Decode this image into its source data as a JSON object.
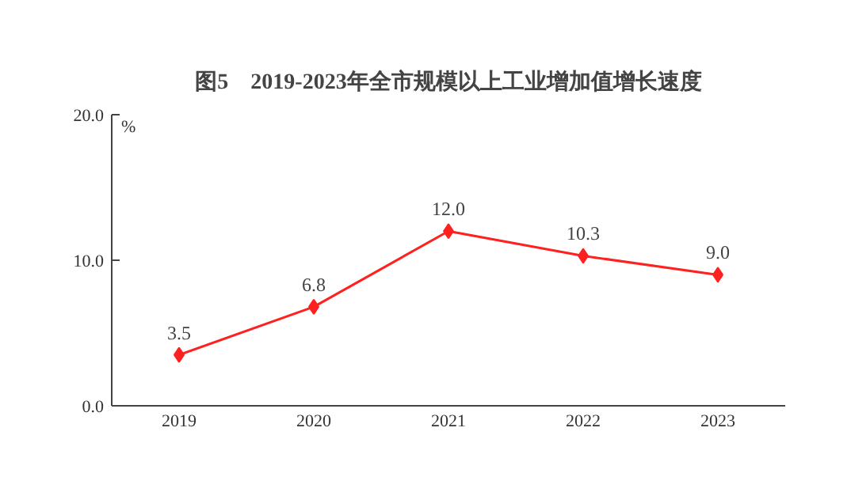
{
  "chart_data": {
    "type": "line",
    "title": "图5　2019-2023年全市规模以上工业增加值增长速度",
    "ylabel": "%",
    "categories": [
      "2019",
      "2020",
      "2021",
      "2022",
      "2023"
    ],
    "series": [
      {
        "color": "#ff2020",
        "values": [
          3.5,
          6.8,
          12.0,
          10.3,
          9.0
        ],
        "value_labels": [
          "3.5",
          "6.8",
          "12.0",
          "10.3",
          "9.0"
        ]
      }
    ],
    "ylim": [
      0,
      20
    ],
    "yticks": [
      {
        "value": 0,
        "label": "0.0"
      },
      {
        "value": 10,
        "label": "10.0"
      },
      {
        "value": 20,
        "label": "20.0"
      }
    ],
    "marker": "diamond",
    "grid": false
  }
}
